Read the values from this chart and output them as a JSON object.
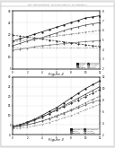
{
  "header_text": "Patent Application Publication   Aug. 30, 2012  Sheet 1 of 3   US 2012/0216464 A1",
  "fig2_title": "Figure 2",
  "fig3_title": "Figure 3",
  "page_color": "#e8e8e8",
  "chart_bg": "#ffffff",
  "border_color": "#888888",
  "fig2": {
    "x": [
      0,
      1,
      2,
      3,
      4,
      5,
      6,
      7,
      8,
      9,
      10,
      11,
      12
    ],
    "left_series": [
      {
        "label": "VLGS_20VSS",
        "y": [
          17,
          18,
          19,
          20,
          21,
          22,
          23,
          24,
          25,
          26,
          27,
          27.5,
          28
        ],
        "color": "#111111",
        "marker": "s"
      },
      {
        "label": "VLGS_SVS",
        "y": [
          15,
          16,
          17,
          17.8,
          18.5,
          19.5,
          20.5,
          21.5,
          22.5,
          23.2,
          24,
          24.5,
          25
        ],
        "color": "#444444",
        "marker": "^"
      },
      {
        "label": "fresh_device",
        "y": [
          13,
          13.5,
          14,
          14.5,
          15,
          15.3,
          15.6,
          15.9,
          16.2,
          16.5,
          16.8,
          17,
          17.2
        ],
        "color": "#777777",
        "marker": "o"
      }
    ],
    "right_series": [
      {
        "label": "VT_VLGS_20VSS",
        "y": [
          5.5,
          5.4,
          5.3,
          5.2,
          5.1,
          5.0,
          4.9,
          4.8,
          4.7,
          4.6,
          4.5,
          4.4,
          4.3
        ],
        "color": "#333333",
        "marker": "D"
      },
      {
        "label": "VT_VLGS_SVS",
        "y": [
          4.8,
          4.9,
          5.0,
          5.1,
          5.2,
          5.3,
          5.4,
          5.5,
          5.6,
          5.7,
          5.8,
          5.9,
          6.0
        ],
        "color": "#888888",
        "marker": "v"
      },
      {
        "label": "initial_value",
        "y": [
          4.2,
          4.2,
          4.2,
          4.2,
          4.2,
          4.2,
          4.2,
          4.2,
          4.2,
          4.2,
          4.2,
          4.2,
          4.2
        ],
        "color": "#aaaaaa",
        "marker": "x"
      }
    ],
    "xlim": [
      0,
      12
    ],
    "ylim_left": [
      5,
      30
    ],
    "ylim_right": [
      2,
      8
    ],
    "yticks_left": [
      5,
      10,
      15,
      20,
      25,
      30
    ],
    "yticks_right": [
      2,
      3,
      4,
      5,
      6,
      7,
      8
    ],
    "xticks": [
      0,
      2,
      4,
      6,
      8,
      10,
      12
    ]
  },
  "fig3": {
    "x": [
      0,
      1,
      2,
      3,
      4,
      5,
      6,
      7,
      8,
      9,
      10,
      11,
      12
    ],
    "left_series": [
      {
        "label": "VLGS_20VSS_APL",
        "y": [
          4,
          5,
          6.5,
          8,
          10,
          12,
          14,
          16.5,
          19,
          21.5,
          24,
          26,
          28
        ],
        "color": "#111111",
        "marker": "s"
      },
      {
        "label": "VLGS_APL",
        "y": [
          4,
          4.8,
          6,
          7.5,
          9,
          11,
          13,
          15,
          17,
          19,
          21,
          23,
          25
        ],
        "color": "#444444",
        "marker": "^"
      },
      {
        "label": "VLGS_20VSS",
        "y": [
          4,
          4.5,
          5.2,
          6,
          7,
          8.2,
          9.5,
          11,
          12.5,
          14,
          15.5,
          17,
          18
        ],
        "color": "#777777",
        "marker": "o"
      }
    ],
    "right_series": [
      {
        "label": "VT_VLGS_20VSS_APL",
        "y": [
          3.5,
          3.8,
          4.2,
          4.6,
          5.1,
          5.6,
          6.2,
          6.8,
          7.4,
          8.0,
          8.6,
          9.2,
          9.8
        ],
        "color": "#333333",
        "marker": "D"
      },
      {
        "label": "VT_VLGS_APL",
        "y": [
          3.2,
          3.4,
          3.7,
          4.0,
          4.4,
          4.8,
          5.3,
          5.8,
          6.3,
          6.9,
          7.5,
          8.1,
          8.7
        ],
        "color": "#666666",
        "marker": "v"
      },
      {
        "label": "VT_VLGS_20VSS",
        "y": [
          3.0,
          3.1,
          3.3,
          3.5,
          3.8,
          4.1,
          4.5,
          4.9,
          5.3,
          5.8,
          6.3,
          6.8,
          7.3
        ],
        "color": "#999999",
        "marker": "x"
      }
    ],
    "xlim": [
      0,
      12
    ],
    "ylim_left": [
      0,
      30
    ],
    "ylim_right": [
      2,
      12
    ],
    "yticks_left": [
      0,
      5,
      10,
      15,
      20,
      25,
      30
    ],
    "yticks_right": [
      2,
      4,
      6,
      8,
      10,
      12
    ],
    "xticks": [
      0,
      2,
      4,
      6,
      8,
      10,
      12
    ]
  }
}
